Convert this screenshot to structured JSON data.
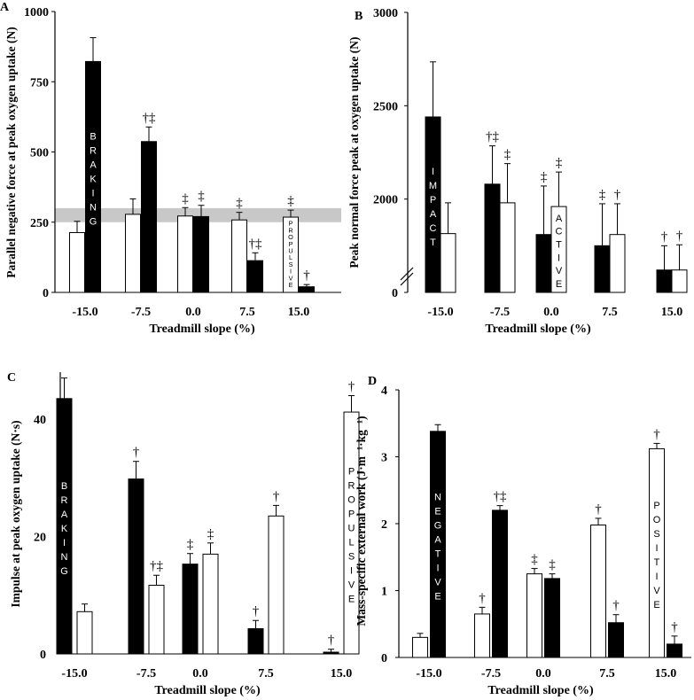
{
  "chart_data": [
    {
      "type": "bar",
      "panel": "A",
      "title": "",
      "xlabel": "Treadmill slope (%)",
      "ylabel": "Parallel negative force at peak oxygen uptake (N)",
      "categories": [
        "-15.0",
        "-7.5",
        "0.0",
        "7.5",
        "15.0"
      ],
      "yticks": [
        "0",
        "250",
        "500",
        "750",
        "1000"
      ],
      "ylim": [
        0,
        1000
      ],
      "band": [
        250,
        300
      ],
      "series": [
        {
          "name": "white",
          "fill": "#ffffff",
          "values": [
            213,
            278,
            272,
            258,
            268
          ],
          "errors": [
            40,
            55,
            30,
            27,
            25
          ]
        },
        {
          "name": "black",
          "fill": "#000000",
          "values": [
            822,
            537,
            270,
            113,
            20
          ],
          "errors": [
            85,
            52,
            40,
            28,
            8
          ]
        }
      ],
      "marks": [
        {
          "cat": 1,
          "s": 1,
          "text": "†‡"
        },
        {
          "cat": 2,
          "s": 0,
          "text": "‡"
        },
        {
          "cat": 2,
          "s": 1,
          "text": "‡"
        },
        {
          "cat": 3,
          "s": 0,
          "text": "‡"
        },
        {
          "cat": 3,
          "s": 1,
          "text": "†‡"
        },
        {
          "cat": 4,
          "s": 0,
          "text": "‡"
        },
        {
          "cat": 4,
          "s": 1,
          "text": "†"
        }
      ],
      "vlabels": [
        {
          "cat": 0,
          "s": 1,
          "text": "BRAKING",
          "light": true
        },
        {
          "cat": 4,
          "s": 0,
          "text": "PROPULSIVE",
          "light": false
        }
      ]
    },
    {
      "type": "bar",
      "panel": "B",
      "title": "",
      "xlabel": "Treadmill slope (%)",
      "ylabel": "Peak normal force peak at oxygen uptake (N)",
      "categories": [
        "-15.0",
        "-7.5",
        "0.0",
        "7.5",
        "15.0"
      ],
      "yticks": [
        "0",
        "2000",
        "2500",
        "3000"
      ],
      "ylim": [
        1500,
        3000
      ],
      "axis_break": true,
      "series": [
        {
          "name": "black",
          "fill": "#000000",
          "values": [
            2440,
            2080,
            1810,
            1750,
            1620
          ],
          "errors": [
            295,
            205,
            260,
            225,
            130
          ]
        },
        {
          "name": "white",
          "fill": "#ffffff",
          "values": [
            1815,
            1980,
            1960,
            1810,
            1620
          ],
          "errors": [
            165,
            210,
            185,
            165,
            135
          ]
        }
      ],
      "marks": [
        {
          "cat": 1,
          "s": 0,
          "text": "†‡"
        },
        {
          "cat": 1,
          "s": 1,
          "text": "‡"
        },
        {
          "cat": 2,
          "s": 0,
          "text": "‡"
        },
        {
          "cat": 2,
          "s": 1,
          "text": "‡"
        },
        {
          "cat": 3,
          "s": 0,
          "text": "‡"
        },
        {
          "cat": 3,
          "s": 1,
          "text": "†"
        },
        {
          "cat": 4,
          "s": 0,
          "text": "†"
        },
        {
          "cat": 4,
          "s": 1,
          "text": "†"
        }
      ],
      "vlabels": [
        {
          "cat": 0,
          "s": 0,
          "text": "IMPACT",
          "light": true
        },
        {
          "cat": 2,
          "s": 1,
          "text": "ACTIVE",
          "light": false
        }
      ]
    },
    {
      "type": "bar",
      "panel": "C",
      "title": "",
      "xlabel": "Treadmill slope (%)",
      "ylabel": "Impulse at peak oxygen uptake (N·s)",
      "categories": [
        "-15.0",
        "-7.5",
        "0.0",
        "7.5",
        "15.0"
      ],
      "yticks": [
        "0",
        "20",
        "40"
      ],
      "ylim": [
        0,
        48
      ],
      "series": [
        {
          "name": "black",
          "fill": "#000000",
          "values": [
            43.5,
            29.8,
            15.3,
            4.3,
            0.3
          ],
          "errors": [
            3.5,
            3.0,
            1.8,
            1.4,
            0.5
          ]
        },
        {
          "name": "white",
          "fill": "#ffffff",
          "values": [
            7.2,
            11.7,
            17.0,
            23.5,
            41.2
          ],
          "errors": [
            1.3,
            1.7,
            1.9,
            1.8,
            2.8
          ]
        }
      ],
      "marks": [
        {
          "cat": 1,
          "s": 0,
          "text": "†"
        },
        {
          "cat": 1,
          "s": 1,
          "text": "†‡"
        },
        {
          "cat": 2,
          "s": 0,
          "text": "‡"
        },
        {
          "cat": 2,
          "s": 1,
          "text": "‡"
        },
        {
          "cat": 3,
          "s": 0,
          "text": "†"
        },
        {
          "cat": 3,
          "s": 1,
          "text": "†"
        },
        {
          "cat": 4,
          "s": 0,
          "text": "†"
        },
        {
          "cat": 4,
          "s": 1,
          "text": "†"
        }
      ],
      "vlabels": [
        {
          "cat": 0,
          "s": 0,
          "text": "BRAKING",
          "light": true
        },
        {
          "cat": 4,
          "s": 1,
          "text": "PROPULSIVE",
          "light": false
        }
      ]
    },
    {
      "type": "bar",
      "panel": "D",
      "title": "",
      "xlabel": "Treadmill slope (%)",
      "ylabel": "Mass-specific external work (J·m⁻¹·kg⁻¹)",
      "categories": [
        "-15.0",
        "-7.5",
        "0.0",
        "7.5",
        "15.0"
      ],
      "yticks": [
        "0",
        "1",
        "2",
        "3",
        "4"
      ],
      "ylim": [
        0,
        4
      ],
      "series": [
        {
          "name": "white",
          "fill": "#ffffff",
          "values": [
            0.3,
            0.65,
            1.25,
            1.98,
            3.12
          ],
          "errors": [
            0.06,
            0.1,
            0.08,
            0.1,
            0.08
          ]
        },
        {
          "name": "black",
          "fill": "#000000",
          "values": [
            3.38,
            2.2,
            1.18,
            0.52,
            0.2
          ],
          "errors": [
            0.1,
            0.07,
            0.07,
            0.12,
            0.12
          ]
        }
      ],
      "marks": [
        {
          "cat": 1,
          "s": 0,
          "text": "†"
        },
        {
          "cat": 1,
          "s": 1,
          "text": "†‡"
        },
        {
          "cat": 2,
          "s": 0,
          "text": "‡"
        },
        {
          "cat": 2,
          "s": 1,
          "text": "‡"
        },
        {
          "cat": 3,
          "s": 0,
          "text": "†"
        },
        {
          "cat": 3,
          "s": 1,
          "text": "†"
        },
        {
          "cat": 4,
          "s": 0,
          "text": "†"
        },
        {
          "cat": 4,
          "s": 1,
          "text": "†"
        }
      ],
      "vlabels": [
        {
          "cat": 0,
          "s": 1,
          "text": "NEGATIVE",
          "light": true
        },
        {
          "cat": 4,
          "s": 0,
          "text": "POSITIVE",
          "light": false
        }
      ]
    }
  ]
}
